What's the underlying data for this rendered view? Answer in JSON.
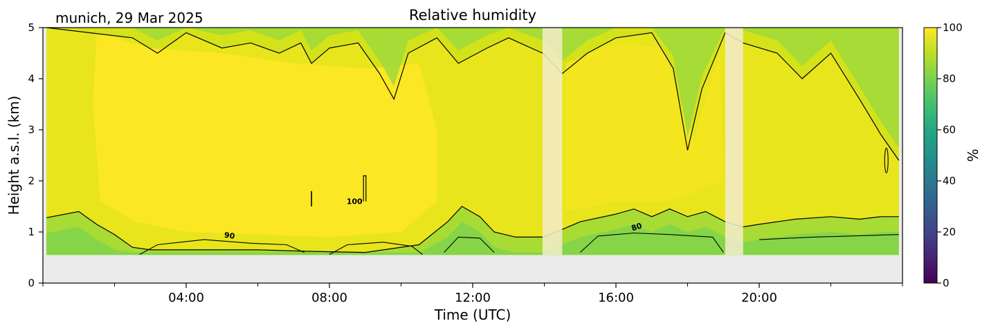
{
  "header": {
    "location_date": "munich, 29 Mar 2025",
    "title": "Relative humidity"
  },
  "chart_data": {
    "type": "heatmap",
    "title": "Relative humidity",
    "xlabel": "Time (UTC)",
    "ylabel": "Height a.s.l. (km)",
    "xlim_hours": [
      0,
      24
    ],
    "ylim_km": [
      0,
      5
    ],
    "x_ticks": [
      {
        "hour": 4,
        "label": "04:00"
      },
      {
        "hour": 8,
        "label": "08:00"
      },
      {
        "hour": 12,
        "label": "12:00"
      },
      {
        "hour": 16,
        "label": "16:00"
      },
      {
        "hour": 20,
        "label": "20:00"
      }
    ],
    "y_ticks": [
      {
        "km": 0,
        "label": "0"
      },
      {
        "km": 1,
        "label": "1"
      },
      {
        "km": 2,
        "label": "2"
      },
      {
        "km": 3,
        "label": "3"
      },
      {
        "km": 4,
        "label": "4"
      },
      {
        "km": 5,
        "label": "5"
      }
    ],
    "data_bottom_km": 0.55,
    "data_time_range_hours": [
      0.1,
      23.9
    ],
    "colorbar": {
      "label": "%",
      "range": [
        0,
        100
      ],
      "ticks": [
        {
          "value": 0,
          "label": "0"
        },
        {
          "value": 20,
          "label": "20"
        },
        {
          "value": 40,
          "label": "40"
        },
        {
          "value": 60,
          "label": "60"
        },
        {
          "value": 80,
          "label": "80"
        },
        {
          "value": 100,
          "label": "100"
        }
      ],
      "colormap": "viridis"
    },
    "missing_data_bands_hours": [
      [
        13.95,
        14.5
      ],
      [
        19.05,
        19.55
      ]
    ],
    "contour_levels": [
      80,
      90,
      100
    ],
    "contour_labels": [
      {
        "text": "90",
        "hour": 5.2,
        "km": 0.88
      },
      {
        "text": "100",
        "hour": 8.7,
        "km": 1.55
      },
      {
        "text": "80",
        "hour": 16.6,
        "km": 1.05
      }
    ],
    "boundary_layer_top_km": [
      [
        0.1,
        1.28
      ],
      [
        1.0,
        1.4
      ],
      [
        1.5,
        1.15
      ],
      [
        2.0,
        0.95
      ],
      [
        2.5,
        0.7
      ],
      [
        3.0,
        0.65
      ],
      [
        6.0,
        0.65
      ],
      [
        7.5,
        0.62
      ],
      [
        9.0,
        0.6
      ],
      [
        10.5,
        0.75
      ],
      [
        11.3,
        1.2
      ],
      [
        11.7,
        1.5
      ],
      [
        12.2,
        1.3
      ],
      [
        12.6,
        1.0
      ],
      [
        13.2,
        0.9
      ],
      [
        13.95,
        0.9
      ],
      [
        14.5,
        1.05
      ],
      [
        15.0,
        1.2
      ],
      [
        16.0,
        1.35
      ],
      [
        16.5,
        1.45
      ],
      [
        17.0,
        1.3
      ],
      [
        17.5,
        1.45
      ],
      [
        18.0,
        1.3
      ],
      [
        18.5,
        1.4
      ],
      [
        19.05,
        1.2
      ],
      [
        19.55,
        1.1
      ],
      [
        20.0,
        1.15
      ],
      [
        21.0,
        1.25
      ],
      [
        22.0,
        1.3
      ],
      [
        22.8,
        1.25
      ],
      [
        23.4,
        1.3
      ],
      [
        23.9,
        1.3
      ]
    ],
    "cloud_base_km": [
      [
        0.1,
        5.0
      ],
      [
        2.5,
        4.8
      ],
      [
        3.2,
        4.5
      ],
      [
        4.0,
        4.9
      ],
      [
        5.0,
        4.6
      ],
      [
        5.8,
        4.7
      ],
      [
        6.6,
        4.5
      ],
      [
        7.2,
        4.7
      ],
      [
        7.5,
        4.3
      ],
      [
        8.0,
        4.6
      ],
      [
        8.8,
        4.7
      ],
      [
        9.4,
        4.1
      ],
      [
        9.8,
        3.6
      ],
      [
        10.2,
        4.5
      ],
      [
        11.0,
        4.8
      ],
      [
        11.6,
        4.3
      ],
      [
        12.4,
        4.6
      ],
      [
        13.0,
        4.8
      ],
      [
        13.95,
        4.5
      ],
      [
        14.5,
        4.1
      ],
      [
        15.2,
        4.5
      ],
      [
        16.0,
        4.8
      ],
      [
        17.0,
        4.9
      ],
      [
        17.6,
        4.2
      ],
      [
        18.0,
        2.6
      ],
      [
        18.4,
        3.8
      ],
      [
        19.05,
        4.9
      ],
      [
        19.55,
        4.7
      ],
      [
        20.5,
        4.5
      ],
      [
        21.2,
        4.0
      ],
      [
        22.0,
        4.5
      ],
      [
        22.8,
        3.6
      ],
      [
        23.4,
        2.9
      ],
      [
        23.9,
        2.4
      ]
    ]
  }
}
